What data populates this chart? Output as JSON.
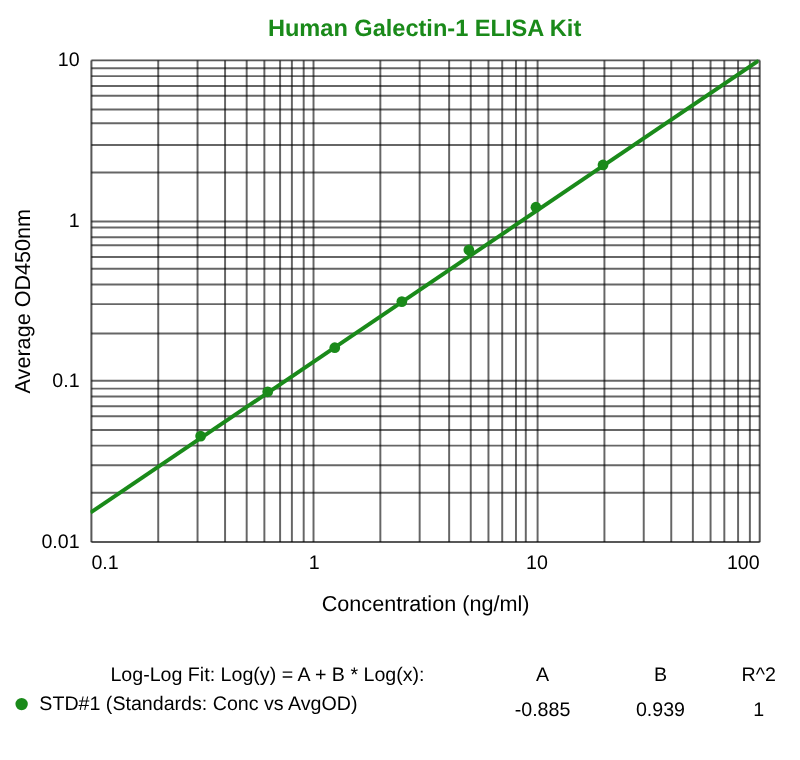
{
  "chart_data": {
    "type": "scatter",
    "title": "Human Galectin-1 ELISA Kit",
    "xlabel": "Concentration (ng/ml)",
    "ylabel": "Average OD450nm",
    "log": "xy",
    "grid": true,
    "legend": "bottom",
    "xlim": [
      0.1,
      100
    ],
    "ylim": [
      0.01,
      10
    ],
    "xticks": [
      0.1,
      {
        "value": 0.2,
        "label": null
      },
      {
        "value": 0.3,
        "label": null
      },
      {
        "value": 0.4,
        "label": null
      },
      {
        "value": 0.5,
        "label": null
      },
      {
        "value": 0.6,
        "label": null
      },
      {
        "value": 0.7,
        "label": null
      },
      {
        "value": 0.8,
        "label": null
      },
      {
        "value": 0.9,
        "label": null
      },
      1,
      {
        "value": 2,
        "label": null
      },
      {
        "value": 3,
        "label": null
      },
      {
        "value": 4,
        "label": null
      },
      {
        "value": 5,
        "label": null
      },
      {
        "value": 6,
        "label": null
      },
      {
        "value": 7,
        "label": null
      },
      {
        "value": 8,
        "label": null
      },
      {
        "value": 9,
        "label": null
      },
      10,
      {
        "value": 20,
        "label": null
      },
      {
        "value": 30,
        "label": null
      },
      {
        "value": 40,
        "label": null
      },
      {
        "value": 50,
        "label": null
      },
      {
        "value": 60,
        "label": null
      },
      {
        "value": 70,
        "label": null
      },
      {
        "value": 80,
        "label": null
      },
      {
        "value": 90,
        "label": null
      },
      100
    ],
    "yticks": [
      0.01,
      {
        "value": 0.02,
        "label": null
      },
      {
        "value": 0.03,
        "label": null
      },
      {
        "value": 0.04,
        "label": null
      },
      {
        "value": 0.05,
        "label": null
      },
      {
        "value": 0.06,
        "label": null
      },
      {
        "value": 0.07,
        "label": null
      },
      {
        "value": 0.08,
        "label": null
      },
      {
        "value": 0.09,
        "label": null
      },
      0.1,
      {
        "value": 0.2,
        "label": null
      },
      {
        "value": 0.3,
        "label": null
      },
      {
        "value": 0.4,
        "label": null
      },
      {
        "value": 0.5,
        "label": null
      },
      {
        "value": 0.6,
        "label": null
      },
      {
        "value": 0.7,
        "label": null
      },
      {
        "value": 0.8,
        "label": null
      },
      {
        "value": 0.9,
        "label": null
      },
      1,
      {
        "value": 2,
        "label": null
      },
      {
        "value": 3,
        "label": null
      },
      {
        "value": 4,
        "label": null
      },
      {
        "value": 5,
        "label": null
      },
      {
        "value": 6,
        "label": null
      },
      {
        "value": 7,
        "label": null
      },
      {
        "value": 8,
        "label": null
      },
      {
        "value": 9,
        "label": null
      },
      10
    ],
    "series": [
      {
        "name": "STD#1 (Standards: Conc vs AvgOD)",
        "marker": "circle",
        "color": "#1a8a1a",
        "x": [
          0.3125,
          0.625,
          1.25,
          2.5,
          5,
          10,
          20
        ],
        "values": [
          0.045,
          0.085,
          0.16,
          0.31,
          0.65,
          1.2,
          2.2
        ]
      },
      {
        "type": "line",
        "line_style": "solid",
        "color": "#1a8a1a",
        "x": [
          0.1,
          100
        ],
        "values": [
          0.015,
          9.84
        ]
      }
    ],
    "annotations": [
      "Log-Log Fit: Log(y) = A + B * Log(x):",
      "A",
      "B",
      "R^2",
      "-0.885",
      "0.939",
      "1"
    ]
  }
}
